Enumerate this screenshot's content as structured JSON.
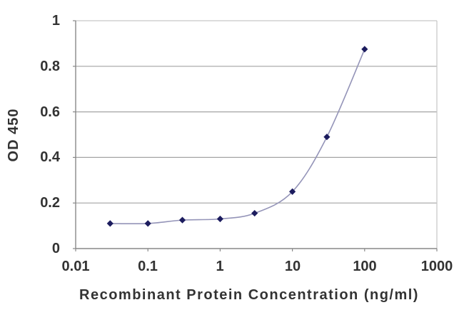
{
  "chart_data": {
    "type": "line",
    "title": "",
    "xlabel": "Recombinant Protein Concentration (ng/ml)",
    "ylabel": "OD 450",
    "x_scale": "log",
    "xlim": [
      0.01,
      1000
    ],
    "ylim": [
      0,
      1
    ],
    "series": [
      {
        "name": "OD 450",
        "x": [
          0.03,
          0.1,
          0.3,
          1,
          3,
          10,
          30,
          100
        ],
        "y": [
          0.11,
          0.11,
          0.125,
          0.13,
          0.155,
          0.25,
          0.49,
          0.875
        ]
      }
    ],
    "xtick_labels": [
      "0.01",
      "0.1",
      "1",
      "10",
      "100",
      "1000"
    ],
    "ytick_labels": [
      "1",
      "0.8",
      "0.6",
      "0.4",
      "0.2",
      "0"
    ],
    "ytick_values": [
      1,
      0.8,
      0.6,
      0.4,
      0.2,
      0
    ],
    "grid": "horizontal",
    "legend": "none",
    "marker": "diamond",
    "line_smooth": true,
    "colors": {
      "line": "#9494b8",
      "marker": "#1c1c5e",
      "gridline": "#a4a4a4",
      "axis": "#888888",
      "frame": "#c6c6c6",
      "text": "#333333",
      "background": "#ffffff"
    }
  }
}
